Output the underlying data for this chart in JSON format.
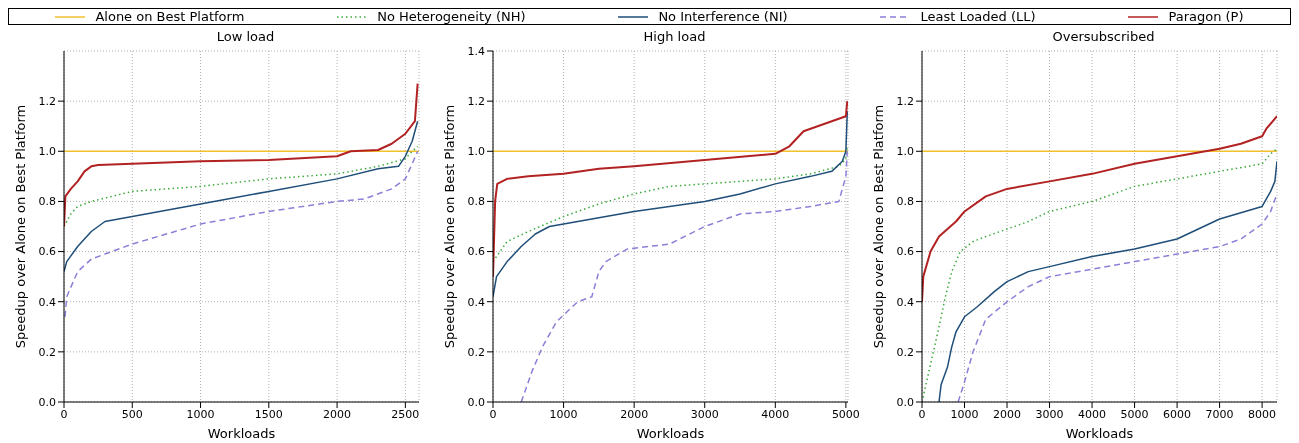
{
  "chart_data": [
    {
      "type": "line",
      "title": "Low load",
      "xlabel": "Workloads",
      "ylabel": "Speedup over Alone on Best Platform",
      "xlim": [
        0,
        2600
      ],
      "xticks": [
        0,
        500,
        1000,
        1500,
        2000,
        2500
      ],
      "ylim": [
        0,
        1.4
      ],
      "yticks": [
        {
          "value": 0,
          "label": "0.0"
        },
        {
          "value": 0.2,
          "label": "0.2"
        },
        {
          "value": 0.4,
          "label": "0.4"
        },
        {
          "value": 0.6,
          "label": "0.6"
        },
        {
          "value": 0.8,
          "label": "0.8"
        },
        {
          "value": 1,
          "label": "1.0"
        },
        {
          "value": 1.2,
          "label": "1.2"
        }
      ],
      "grid": true,
      "legend": "top",
      "series": [
        {
          "name": "Alone on Best Platform",
          "color": "#f2c12e",
          "line_style": "solid",
          "x": [
            0,
            2600
          ],
          "values": [
            1,
            1
          ]
        },
        {
          "name": "No Heterogeneity (NH)",
          "color": "#3aa83a",
          "line_style": "dotted",
          "x": [
            0,
            50,
            100,
            200,
            500,
            1000,
            1500,
            2000,
            2300,
            2500,
            2550,
            2590
          ],
          "values": [
            0.7,
            0.75,
            0.78,
            0.8,
            0.84,
            0.86,
            0.89,
            0.91,
            0.94,
            0.97,
            1.0,
            1.02
          ]
        },
        {
          "name": "No Interference (NI)",
          "color": "#1f4e79",
          "line_style": "solid",
          "x": [
            0,
            20,
            100,
            200,
            300,
            500,
            1000,
            1500,
            2000,
            2300,
            2450,
            2500,
            2550,
            2590
          ],
          "values": [
            0.52,
            0.56,
            0.62,
            0.68,
            0.72,
            0.74,
            0.79,
            0.84,
            0.89,
            0.93,
            0.94,
            0.98,
            1.04,
            1.12
          ]
        },
        {
          "name": "Least Loaded (LL)",
          "color": "#8c7fd8",
          "line_style": "dashed",
          "x": [
            8,
            20,
            100,
            200,
            300,
            500,
            1000,
            1500,
            2000,
            2200,
            2400,
            2500,
            2550,
            2590
          ],
          "values": [
            0.34,
            0.42,
            0.52,
            0.57,
            0.59,
            0.63,
            0.71,
            0.76,
            0.8,
            0.81,
            0.85,
            0.89,
            0.95,
            1.0
          ]
        },
        {
          "name": "Paragon (P)",
          "color": "#b22222",
          "line_style": "solid",
          "x": [
            0,
            10,
            50,
            100,
            150,
            200,
            250,
            500,
            1000,
            1500,
            2000,
            2100,
            2300,
            2400,
            2500,
            2570,
            2590
          ],
          "values": [
            0.7,
            0.82,
            0.85,
            0.88,
            0.92,
            0.94,
            0.945,
            0.95,
            0.96,
            0.965,
            0.98,
            1.0,
            1.005,
            1.03,
            1.07,
            1.12,
            1.27
          ]
        }
      ]
    },
    {
      "type": "line",
      "title": "High load",
      "xlabel": "Workloads",
      "ylabel": "Speedup over Alone on Best Platform",
      "xlim": [
        0,
        5030
      ],
      "xticks": [
        0,
        1000,
        2000,
        3000,
        4000,
        5000
      ],
      "ylim": [
        0,
        1.4
      ],
      "yticks": [
        {
          "value": 0,
          "label": "0.0"
        },
        {
          "value": 0.2,
          "label": "0.2"
        },
        {
          "value": 0.4,
          "label": "0.4"
        },
        {
          "value": 0.6,
          "label": "0.6"
        },
        {
          "value": 0.8,
          "label": "0.8"
        },
        {
          "value": 1,
          "label": "1.0"
        },
        {
          "value": 1.2,
          "label": "1.2"
        },
        {
          "value": 1.4,
          "label": "1.4"
        }
      ],
      "grid": true,
      "series": [
        {
          "color": "#f2c12e",
          "line_style": "solid",
          "x": [
            0,
            5030
          ],
          "values": [
            1,
            1
          ]
        },
        {
          "color": "#3aa83a",
          "line_style": "dotted",
          "x": [
            0,
            100,
            200,
            500,
            1000,
            1500,
            2000,
            2500,
            3000,
            4000,
            4500,
            4900,
            5000,
            5020
          ],
          "values": [
            0.56,
            0.6,
            0.64,
            0.68,
            0.74,
            0.79,
            0.83,
            0.86,
            0.87,
            0.89,
            0.91,
            0.94,
            0.97,
            1.02
          ]
        },
        {
          "color": "#1f4e79",
          "line_style": "solid",
          "x": [
            0,
            50,
            200,
            400,
            600,
            800,
            1000,
            2000,
            3000,
            3500,
            4000,
            4500,
            4800,
            4950,
            5000,
            5020
          ],
          "values": [
            0.42,
            0.5,
            0.56,
            0.62,
            0.67,
            0.7,
            0.71,
            0.76,
            0.8,
            0.83,
            0.87,
            0.9,
            0.92,
            0.96,
            1.0,
            1.16
          ]
        },
        {
          "color": "#8c7fd8",
          "line_style": "dashed",
          "x": [
            400,
            550,
            700,
            900,
            1200,
            1400,
            1500,
            1600,
            1900,
            2500,
            3000,
            3500,
            4000,
            4500,
            4900,
            5000,
            5020
          ],
          "values": [
            0,
            0.12,
            0.22,
            0.32,
            0.4,
            0.42,
            0.52,
            0.56,
            0.61,
            0.63,
            0.7,
            0.75,
            0.76,
            0.78,
            0.8,
            0.9,
            1.0
          ]
        },
        {
          "color": "#b22222",
          "line_style": "solid",
          "x": [
            0,
            30,
            60,
            200,
            500,
            1000,
            1500,
            2000,
            3000,
            4000,
            4200,
            4400,
            4600,
            4800,
            5000,
            5020
          ],
          "values": [
            0.5,
            0.8,
            0.87,
            0.89,
            0.9,
            0.91,
            0.93,
            0.94,
            0.965,
            0.99,
            1.02,
            1.08,
            1.1,
            1.12,
            1.14,
            1.2
          ]
        }
      ]
    },
    {
      "type": "line",
      "title": "Oversubscribed",
      "xlabel": "Workloads",
      "ylabel": "Speedup over Alone on Best Platform",
      "xlim": [
        0,
        8350
      ],
      "xticks": [
        0,
        1000,
        2000,
        3000,
        4000,
        5000,
        6000,
        7000,
        8000
      ],
      "ylim": [
        0,
        1.4
      ],
      "yticks": [
        {
          "value": 0,
          "label": "0.0"
        },
        {
          "value": 0.2,
          "label": "0.2"
        },
        {
          "value": 0.4,
          "label": "0.4"
        },
        {
          "value": 0.6,
          "label": "0.6"
        },
        {
          "value": 0.8,
          "label": "0.8"
        },
        {
          "value": 1,
          "label": "1.0"
        },
        {
          "value": 1.2,
          "label": "1.2"
        }
      ],
      "grid": true,
      "series": [
        {
          "color": "#f2c12e",
          "line_style": "solid",
          "x": [
            0,
            8350
          ],
          "values": [
            1,
            1
          ]
        },
        {
          "color": "#3aa83a",
          "line_style": "dotted",
          "x": [
            0,
            200,
            400,
            550,
            700,
            900,
            1200,
            1500,
            2000,
            2500,
            3000,
            4000,
            5000,
            6000,
            7000,
            8000,
            8200,
            8350
          ],
          "values": [
            0.0,
            0.15,
            0.3,
            0.42,
            0.52,
            0.6,
            0.64,
            0.66,
            0.69,
            0.72,
            0.76,
            0.8,
            0.86,
            0.89,
            0.92,
            0.95,
            0.99,
            1.01
          ]
        },
        {
          "color": "#1f4e79",
          "line_style": "solid",
          "x": [
            400,
            450,
            600,
            700,
            800,
            1000,
            1300,
            1700,
            2000,
            2500,
            3000,
            4000,
            5000,
            5500,
            6000,
            6500,
            7000,
            8000,
            8200,
            8300,
            8350
          ],
          "values": [
            0,
            0.07,
            0.14,
            0.22,
            0.28,
            0.34,
            0.38,
            0.44,
            0.48,
            0.52,
            0.54,
            0.58,
            0.61,
            0.63,
            0.65,
            0.69,
            0.73,
            0.78,
            0.84,
            0.88,
            0.96
          ]
        },
        {
          "color": "#8c7fd8",
          "line_style": "dashed",
          "x": [
            850,
            1000,
            1200,
            1500,
            2000,
            2500,
            3000,
            4000,
            5000,
            6000,
            7000,
            7500,
            8000,
            8200,
            8350
          ],
          "values": [
            0,
            0.08,
            0.2,
            0.33,
            0.4,
            0.46,
            0.5,
            0.53,
            0.56,
            0.59,
            0.62,
            0.65,
            0.71,
            0.76,
            0.83
          ]
        },
        {
          "color": "#b22222",
          "line_style": "solid",
          "x": [
            0,
            30,
            200,
            400,
            800,
            1000,
            1500,
            2000,
            3000,
            4000,
            5000,
            6000,
            7000,
            7500,
            8000,
            8100,
            8350
          ],
          "values": [
            0.4,
            0.5,
            0.6,
            0.66,
            0.72,
            0.76,
            0.82,
            0.85,
            0.88,
            0.91,
            0.95,
            0.98,
            1.01,
            1.03,
            1.06,
            1.09,
            1.14
          ]
        }
      ]
    }
  ]
}
